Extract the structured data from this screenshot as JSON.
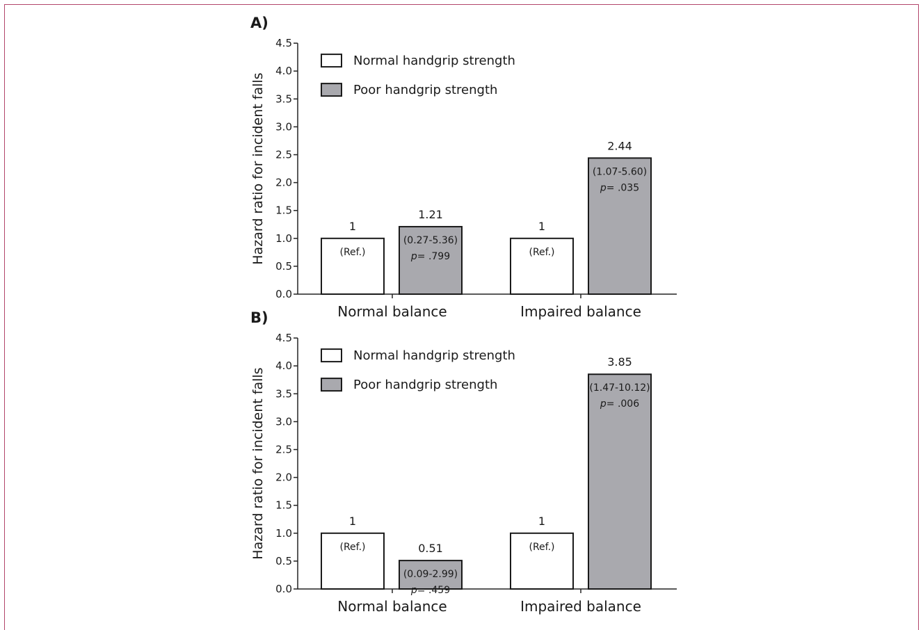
{
  "chart_data": [
    {
      "type": "bar",
      "panel_label": "A)",
      "ylabel": "Hazard ratio for incident falls",
      "ylim": [
        0,
        4.5
      ],
      "yticks": [
        "0.0",
        "0.5",
        "1.0",
        "1.5",
        "2.0",
        "2.5",
        "3.0",
        "3.5",
        "4.0",
        "4.5"
      ],
      "categories": [
        "Normal balance",
        "Impaired balance"
      ],
      "legend": {
        "position": "top-left",
        "entries": [
          "Normal handgrip strength",
          "Poor handgrip strength"
        ]
      },
      "series": [
        {
          "name": "Normal handgrip strength",
          "color": "#ffffff",
          "values": [
            1,
            1
          ],
          "value_labels": [
            "1",
            "1"
          ],
          "ci_labels": [
            "(Ref.)",
            "(Ref.)"
          ],
          "p_labels": [
            "",
            ""
          ]
        },
        {
          "name": "Poor handgrip strength",
          "color": "#a9a9ae",
          "values": [
            1.21,
            2.44
          ],
          "value_labels": [
            "1.21",
            "2.44"
          ],
          "ci_labels": [
            "(0.27-5.36)",
            "(1.07-5.60)"
          ],
          "p_labels": [
            ".799",
            ".035"
          ]
        }
      ]
    },
    {
      "type": "bar",
      "panel_label": "B)",
      "ylabel": "Hazard ratio for incident falls",
      "ylim": [
        0,
        4.5
      ],
      "yticks": [
        "0.0",
        "0.5",
        "1.0",
        "1.5",
        "2.0",
        "2.5",
        "3.0",
        "3.5",
        "4.0",
        "4.5"
      ],
      "categories": [
        "Normal balance",
        "Impaired balance"
      ],
      "legend": {
        "position": "top-left",
        "entries": [
          "Normal handgrip strength",
          "Poor handgrip strength"
        ]
      },
      "series": [
        {
          "name": "Normal handgrip strength",
          "color": "#ffffff",
          "values": [
            1,
            1
          ],
          "value_labels": [
            "1",
            "1"
          ],
          "ci_labels": [
            "(Ref.)",
            "(Ref.)"
          ],
          "p_labels": [
            "",
            ""
          ]
        },
        {
          "name": "Poor handgrip strength",
          "color": "#a9a9ae",
          "values": [
            0.51,
            3.85
          ],
          "value_labels": [
            "0.51",
            "3.85"
          ],
          "ci_labels": [
            "(0.09-2.99)",
            "(1.47-10.12)"
          ],
          "p_labels": [
            ".459",
            ".006"
          ]
        }
      ]
    }
  ]
}
